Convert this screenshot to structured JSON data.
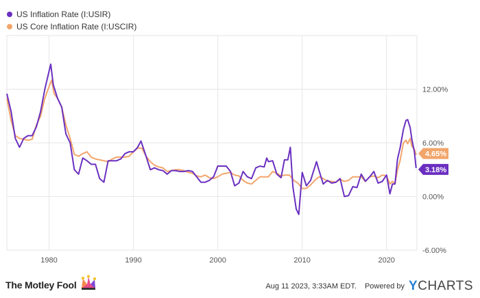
{
  "legend": [
    {
      "label": "US Inflation Rate (I:USIR)",
      "color": "#6a2fc0"
    },
    {
      "label": "US Core Inflation Rate (I:USCIR)",
      "color": "#f2a56b"
    }
  ],
  "footer": {
    "brand": "The Motley Fool",
    "brand_icon": "jester-hat-icon",
    "date": "Aug 11 2023, 3:33AM EDT.",
    "powered_by": "Powered by",
    "provider": "YCHARTS",
    "provider_initial": "Y",
    "provider_rest": "CHARTS"
  },
  "chart_data": {
    "type": "line",
    "title": "",
    "xlabel": "",
    "ylabel": "",
    "xlim": [
      1975,
      2023.6
    ],
    "ylim": [
      -6,
      18
    ],
    "x_ticks": [
      1980,
      1990,
      2000,
      2010,
      2020
    ],
    "x_tick_labels": [
      "1980",
      "1990",
      "2000",
      "2010",
      "2020"
    ],
    "y_ticks": [
      -6,
      0,
      6,
      12
    ],
    "y_tick_labels": [
      "-6.00%",
      "0.00%",
      "6.00%",
      "12.00%"
    ],
    "grid": true,
    "legend_position": "top-left",
    "series": [
      {
        "name": "US Inflation Rate (I:USIR)",
        "color": "#6a2fc0",
        "end_label": "3.18%",
        "x": [
          1975.0,
          1975.5,
          1976.0,
          1976.5,
          1977.0,
          1977.5,
          1978.0,
          1978.5,
          1979.0,
          1979.5,
          1980.0,
          1980.2,
          1980.5,
          1981.0,
          1981.5,
          1982.0,
          1982.5,
          1983.0,
          1983.5,
          1984.0,
          1984.5,
          1985.0,
          1985.5,
          1986.0,
          1986.5,
          1987.0,
          1987.5,
          1988.0,
          1988.5,
          1989.0,
          1989.5,
          1990.0,
          1990.5,
          1990.9,
          1991.5,
          1992.0,
          1992.5,
          1993.0,
          1993.5,
          1994.0,
          1994.5,
          1995.0,
          1995.5,
          1996.0,
          1996.5,
          1997.0,
          1997.5,
          1998.0,
          1998.5,
          1999.0,
          1999.5,
          2000.0,
          2000.5,
          2001.0,
          2001.5,
          2002.0,
          2002.5,
          2003.0,
          2003.5,
          2004.0,
          2004.5,
          2005.0,
          2005.5,
          2005.8,
          2006.0,
          2006.5,
          2007.0,
          2007.5,
          2007.9,
          2008.3,
          2008.6,
          2008.9,
          2009.3,
          2009.6,
          2010.0,
          2010.5,
          2011.0,
          2011.7,
          2012.0,
          2012.5,
          2013.0,
          2013.5,
          2014.0,
          2014.5,
          2015.0,
          2015.5,
          2016.0,
          2016.5,
          2017.0,
          2017.5,
          2018.0,
          2018.5,
          2019.0,
          2019.5,
          2020.0,
          2020.4,
          2020.7,
          2021.0,
          2021.3,
          2021.6,
          2022.0,
          2022.3,
          2022.5,
          2022.8,
          2023.0,
          2023.3,
          2023.5
        ],
        "y": [
          11.5,
          9.5,
          6.5,
          5.5,
          6.5,
          6.8,
          6.8,
          7.8,
          9.5,
          12.0,
          14.0,
          14.8,
          12.5,
          11.0,
          10.0,
          7.0,
          6.0,
          3.0,
          2.5,
          4.3,
          4.0,
          3.6,
          3.6,
          2.0,
          1.6,
          4.0,
          4.0,
          4.0,
          4.2,
          4.8,
          5.0,
          5.0,
          5.5,
          6.2,
          4.5,
          3.0,
          3.2,
          3.0,
          2.9,
          2.5,
          2.9,
          2.9,
          2.8,
          2.8,
          2.9,
          2.8,
          2.2,
          1.6,
          1.6,
          1.8,
          2.2,
          3.4,
          3.4,
          3.4,
          2.8,
          1.2,
          1.5,
          2.8,
          2.2,
          2.0,
          3.2,
          3.4,
          3.3,
          4.3,
          3.9,
          4.0,
          2.5,
          2.1,
          4.1,
          4.1,
          5.5,
          1.1,
          -1.4,
          -2.0,
          2.7,
          1.2,
          1.8,
          3.9,
          2.9,
          1.4,
          1.8,
          1.5,
          1.6,
          2.0,
          0.0,
          0.1,
          1.1,
          1.0,
          2.5,
          1.7,
          2.2,
          2.8,
          1.5,
          1.7,
          2.4,
          0.3,
          1.4,
          1.4,
          4.2,
          5.4,
          7.5,
          8.5,
          8.6,
          7.7,
          6.4,
          5.0,
          3.18
        ]
      },
      {
        "name": "US Core Inflation Rate (I:USCIR)",
        "color": "#f2a56b",
        "end_label": "4.65%",
        "x": [
          1975.0,
          1975.5,
          1976.0,
          1976.5,
          1977.0,
          1977.5,
          1978.0,
          1978.5,
          1979.0,
          1979.5,
          1980.0,
          1980.3,
          1980.6,
          1981.0,
          1981.5,
          1982.0,
          1982.5,
          1983.0,
          1983.5,
          1984.0,
          1984.5,
          1985.0,
          1985.5,
          1986.0,
          1986.5,
          1987.0,
          1987.5,
          1988.0,
          1988.5,
          1989.0,
          1989.5,
          1990.0,
          1990.5,
          1991.0,
          1991.5,
          1992.0,
          1992.5,
          1993.0,
          1993.5,
          1994.0,
          1994.5,
          1995.0,
          1995.5,
          1996.0,
          1996.5,
          1997.0,
          1997.5,
          1998.0,
          1998.5,
          1999.0,
          1999.5,
          2000.0,
          2000.5,
          2001.0,
          2001.5,
          2002.0,
          2002.5,
          2003.0,
          2003.5,
          2004.0,
          2004.5,
          2005.0,
          2005.5,
          2006.0,
          2006.5,
          2007.0,
          2007.5,
          2008.0,
          2008.5,
          2009.0,
          2009.5,
          2010.0,
          2010.5,
          2011.0,
          2011.5,
          2012.0,
          2012.5,
          2013.0,
          2013.5,
          2014.0,
          2014.5,
          2015.0,
          2015.5,
          2016.0,
          2016.5,
          2017.0,
          2017.5,
          2018.0,
          2018.5,
          2019.0,
          2019.5,
          2020.0,
          2020.4,
          2020.7,
          2021.0,
          2021.3,
          2021.6,
          2022.0,
          2022.3,
          2022.5,
          2022.8,
          2023.0,
          2023.3,
          2023.5
        ],
        "y": [
          11.0,
          8.5,
          6.8,
          6.5,
          6.4,
          6.3,
          6.4,
          8.0,
          9.0,
          11.0,
          12.3,
          13.0,
          11.5,
          11.0,
          10.0,
          8.0,
          6.5,
          4.7,
          4.5,
          4.8,
          5.0,
          4.4,
          4.2,
          4.1,
          4.0,
          3.9,
          4.2,
          4.4,
          4.4,
          4.4,
          4.5,
          5.0,
          5.4,
          5.4,
          4.5,
          3.9,
          3.5,
          3.3,
          3.2,
          2.8,
          2.9,
          3.0,
          3.0,
          2.9,
          2.7,
          2.6,
          2.3,
          2.2,
          2.4,
          2.1,
          2.0,
          2.2,
          2.5,
          2.6,
          2.7,
          2.4,
          2.3,
          1.8,
          1.5,
          1.4,
          1.8,
          2.2,
          2.2,
          2.2,
          2.8,
          2.6,
          2.3,
          2.4,
          2.4,
          1.8,
          1.5,
          0.9,
          0.9,
          1.3,
          1.8,
          2.2,
          2.0,
          1.7,
          1.7,
          1.6,
          1.9,
          1.7,
          1.8,
          2.2,
          2.2,
          2.2,
          1.7,
          2.2,
          2.3,
          2.1,
          2.4,
          2.3,
          1.4,
          1.7,
          1.4,
          3.0,
          4.0,
          6.0,
          6.3,
          5.9,
          6.5,
          5.6,
          5.3,
          4.65
        ]
      }
    ]
  }
}
